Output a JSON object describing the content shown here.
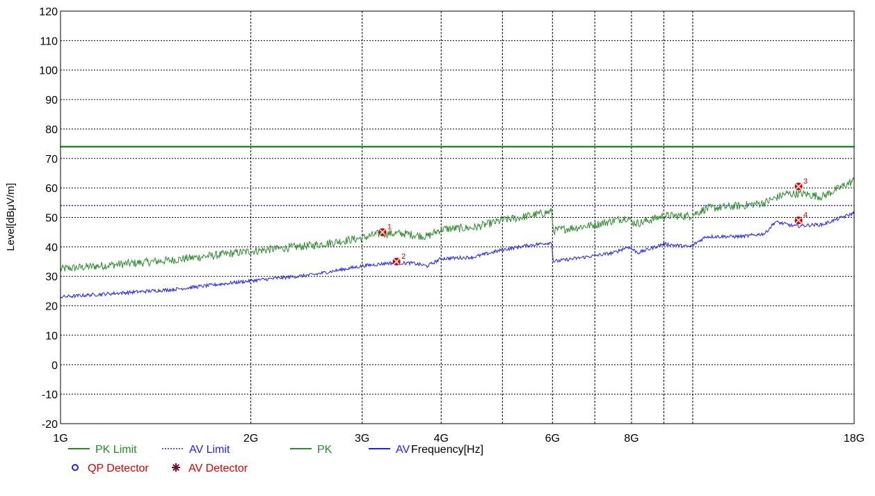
{
  "chart_data": {
    "type": "line",
    "title": "",
    "xlabel": "Frequency[Hz]",
    "ylabel": "Level[dBμV/m]",
    "x_scale": "log",
    "xlim": [
      1000000000,
      18000000000
    ],
    "ylim": [
      -20,
      120
    ],
    "y_ticks": [
      -20,
      -10,
      0,
      10,
      20,
      30,
      40,
      50,
      60,
      70,
      80,
      90,
      100,
      110,
      120
    ],
    "x_tick_labels": [
      {
        "label": "1G",
        "value": 1000000000
      },
      {
        "label": "2G",
        "value": 2000000000
      },
      {
        "label": "3G",
        "value": 3000000000
      },
      {
        "label": "4G",
        "value": 4000000000
      },
      {
        "label": "6G",
        "value": 6000000000
      },
      {
        "label": "8G",
        "value": 8000000000
      },
      {
        "label": "18G",
        "value": 18000000000
      }
    ],
    "x_gridlines": [
      2000000000,
      3000000000,
      4000000000,
      5000000000,
      6000000000,
      7000000000,
      8000000000,
      9000000000,
      10000000000
    ],
    "grid": true,
    "legend_position": "bottom",
    "series": [
      {
        "name": "PK Limit",
        "color": "#228b22",
        "style": "solid",
        "x": [
          1000000000,
          18000000000
        ],
        "values": [
          74,
          74
        ]
      },
      {
        "name": "AV Limit",
        "color": "#1f1fff",
        "style": "dotted",
        "x": [
          1000000000,
          18000000000
        ],
        "values": [
          54,
          54
        ]
      },
      {
        "name": "PK",
        "color": "#2e8b2e",
        "style": "solid",
        "x": [
          1000000000,
          1500000000,
          2000000000,
          2500000000,
          3000000000,
          3200000000,
          3500000000,
          3800000000,
          4000000000,
          4500000000,
          5000000000,
          5500000000,
          5990000000,
          6010000000,
          7000000000,
          7900000000,
          8000000000,
          8200000000,
          9000000000,
          9900000000,
          10500000000,
          12000000000,
          13000000000,
          14000000000,
          15000000000,
          16000000000,
          18000000000
        ],
        "values": [
          32.5,
          35.5,
          38.5,
          40.5,
          43,
          44.5,
          44.5,
          43.5,
          46,
          46.5,
          49,
          50.5,
          52,
          45.5,
          47.5,
          50,
          48.5,
          48,
          50.5,
          50.5,
          53,
          54,
          55,
          58,
          58,
          57,
          62.5
        ]
      },
      {
        "name": "AV",
        "color": "#1f1fff",
        "style": "solid",
        "x": [
          1000000000,
          1500000000,
          2000000000,
          2500000000,
          3000000000,
          3300000000,
          3600000000,
          3800000000,
          4000000000,
          4500000000,
          5000000000,
          5500000000,
          5990000000,
          6010000000,
          7000000000,
          7500000000,
          7900000000,
          8200000000,
          9000000000,
          9900000000,
          10500000000,
          12000000000,
          13000000000,
          13500000000,
          14500000000,
          15500000000,
          16000000000,
          18000000000
        ],
        "values": [
          23,
          25.5,
          28.5,
          30.5,
          33.5,
          34.5,
          34.5,
          33.5,
          36,
          36.5,
          39,
          40.5,
          41.5,
          35,
          37,
          38,
          40,
          38,
          41,
          40,
          43.5,
          43.5,
          44.5,
          48.5,
          47,
          47.5,
          47.5,
          51.5
        ]
      }
    ],
    "markers": [
      {
        "label": "1",
        "x": 3230000000,
        "y": 45
      },
      {
        "label": "2",
        "x": 3400000000,
        "y": 35
      },
      {
        "label": "3",
        "x": 14700000000,
        "y": 60.5
      },
      {
        "label": "4",
        "x": 14700000000,
        "y": 49
      }
    ],
    "legend": {
      "row1": [
        {
          "label": "PK Limit",
          "color": "#228b22",
          "style": "solid"
        },
        {
          "label": "AV Limit",
          "color": "#1f1fff",
          "style": "dotted"
        },
        {
          "label": "PK",
          "color": "#2e8b2e",
          "style": "solid"
        },
        {
          "label": "AV",
          "color": "#1f1fff",
          "style": "solid"
        }
      ],
      "row2": [
        {
          "label": "QP Detector",
          "color": "#e00000",
          "symbol_color": "#1f1fff",
          "symbol": "circle"
        },
        {
          "label": "AV Detector",
          "color": "#e00000",
          "symbol_color": "#7b1030",
          "symbol": "star"
        }
      ]
    },
    "colors": {
      "marker": "#e00000",
      "grid": "#000000"
    }
  }
}
